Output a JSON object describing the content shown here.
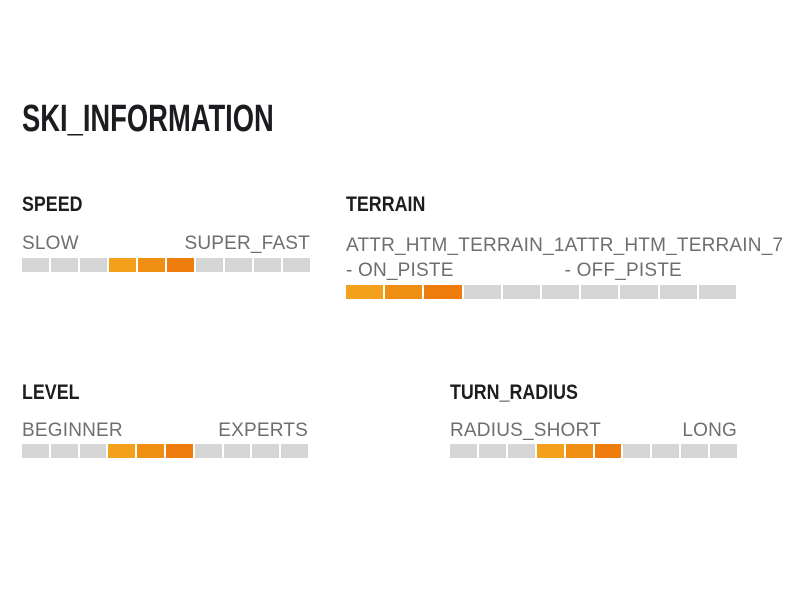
{
  "page": {
    "title": "SKI_INFORMATION"
  },
  "colors": {
    "background": "#ffffff",
    "heading_text": "#1d1d1b",
    "label_text": "#6e6e6e",
    "segment_gray": "#d5d5d5",
    "active_shades": [
      "#f3a11d",
      "#f08e13",
      "#ee7d0e"
    ]
  },
  "sections": [
    {
      "id": "speed",
      "heading": "SPEED",
      "label_left": "SLOW",
      "label_right": "SUPER_FAST",
      "bar": {
        "segments": 10,
        "active_start": 4,
        "active_end": 6
      }
    },
    {
      "id": "terrain",
      "heading": "TERRAIN",
      "label_left_top": "ATTR_HTM_TERRAIN_1",
      "label_left_bottom": "- ON_PISTE",
      "label_right_top": "ATTR_HTM_TERRAIN_7",
      "label_right_bottom": "- OFF_PISTE",
      "bar": {
        "segments": 10,
        "active_start": 1,
        "active_end": 3
      }
    },
    {
      "id": "level",
      "heading": "LEVEL",
      "label_left": "BEGINNER",
      "label_right": "EXPERTS",
      "bar": {
        "segments": 10,
        "active_start": 4,
        "active_end": 6
      }
    },
    {
      "id": "turn_radius",
      "heading": "TURN_RADIUS",
      "label_left": "RADIUS_SHORT",
      "label_right": "LONG",
      "bar": {
        "segments": 10,
        "active_start": 4,
        "active_end": 6
      }
    }
  ],
  "chart_data": {
    "type": "bar",
    "title": "SKI_INFORMATION",
    "scale_segments": 10,
    "legend_position": "none",
    "items": [
      {
        "label": "SPEED",
        "min_label": "SLOW",
        "max_label": "SUPER_FAST",
        "active_segments": [
          4,
          5,
          6
        ]
      },
      {
        "label": "TERRAIN",
        "min_label": "ATTR_HTM_TERRAIN_1 - ON_PISTE",
        "max_label": "ATTR_HTM_TERRAIN_7 - OFF_PISTE",
        "active_segments": [
          1,
          2,
          3
        ]
      },
      {
        "label": "LEVEL",
        "min_label": "BEGINNER",
        "max_label": "EXPERTS",
        "active_segments": [
          4,
          5,
          6
        ]
      },
      {
        "label": "TURN_RADIUS",
        "min_label": "RADIUS_SHORT",
        "max_label": "LONG",
        "active_segments": [
          4,
          5,
          6
        ]
      }
    ]
  }
}
